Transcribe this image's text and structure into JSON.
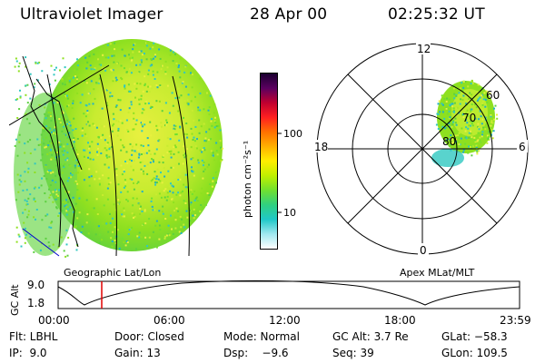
{
  "header": {
    "instrument": "Ultraviolet Imager",
    "date": "28 Apr 00",
    "time": "02:25:32 UT"
  },
  "colorbar": {
    "unit_label": "photon cm⁻²s⁻¹",
    "ticks": [
      "100",
      "10"
    ],
    "ticks_values": [
      100,
      10
    ],
    "colors": [
      "#1a0030",
      "#5a0060",
      "#c00030",
      "#ff2020",
      "#ff7000",
      "#ffb000",
      "#ffee00",
      "#c0f000",
      "#70e030",
      "#30d080",
      "#20c8c8",
      "#a0e8f0",
      "#ffffff"
    ]
  },
  "polar_plot": {
    "mlt_labels": {
      "top": "12",
      "right": "6",
      "bottom": "0",
      "left": "18"
    },
    "lat_labels": [
      "60",
      "70",
      "80"
    ]
  },
  "captions": {
    "left": "Geographic Lat/Lon",
    "right": "Apex MLat/MLT"
  },
  "altitude_strip": {
    "label": "GC Alt",
    "y_ticks": [
      "9.0",
      "1.8"
    ],
    "x_ticks": [
      "00:00",
      "06:00",
      "12:00",
      "18:00",
      "23:59"
    ],
    "current_time_marker": "02:25:32",
    "marker_color": "#e00000"
  },
  "info": {
    "row1": {
      "flt": "Flt: LBHL",
      "door": "Door: Closed",
      "mode": "Mode: Normal",
      "gcalt": "GC Alt: 3.7 Re",
      "glat": "GLat: −58.3"
    },
    "row2": {
      "ip": "IP:  9.0",
      "gain": "Gain: 13",
      "dsp": "Dsp:    −9.6",
      "seq": "Seq: 39",
      "glon": "GLon: 109.5"
    }
  },
  "colors": {
    "aurora_green": "#8ee020",
    "aurora_yellow": "#e0f040",
    "aurora_cyan": "#30c8c0",
    "coastline": "#0000cc"
  }
}
